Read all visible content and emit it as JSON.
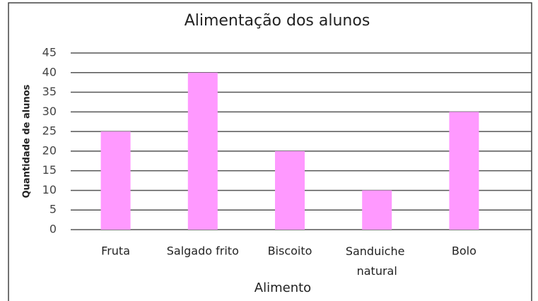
{
  "chart_data": {
    "type": "bar",
    "title": "Alimentação dos alunos",
    "x_label": "Alimento",
    "y_label": "Quantidade de alunos",
    "categories": [
      "Fruta",
      "Salgado frito",
      "Biscoito",
      "Sanduiche natural",
      "Bolo"
    ],
    "values": [
      25,
      40,
      20,
      10,
      30
    ],
    "color": "#ff99ff",
    "ylim": [
      0,
      45
    ],
    "yticks": [
      0,
      5,
      10,
      15,
      20,
      25,
      30,
      35,
      40,
      45
    ],
    "grid": true
  }
}
